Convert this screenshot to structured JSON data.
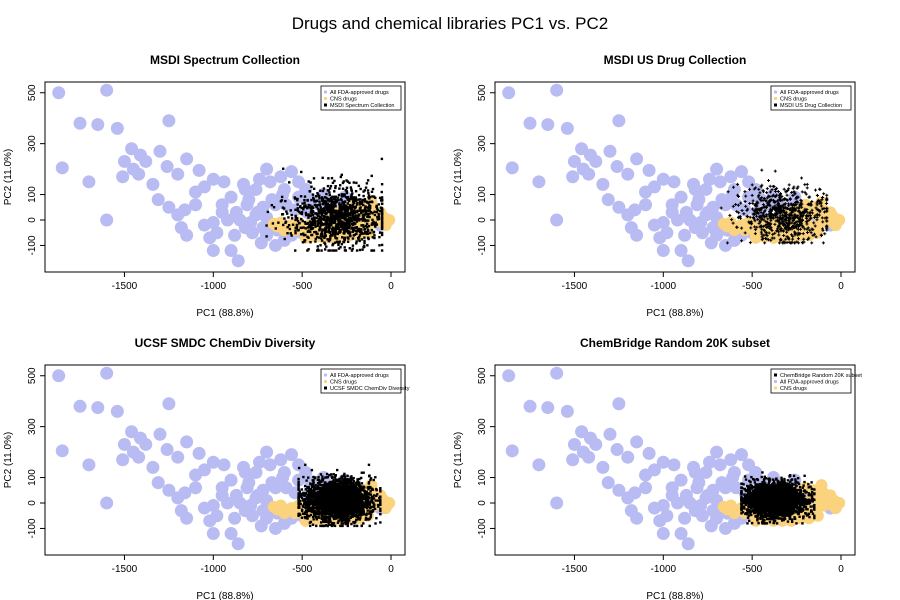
{
  "figure": {
    "title": "Drugs and chemical libraries PC1 vs. PC2"
  },
  "colors": {
    "fda": "#b9bcf2",
    "cns": "#fbd27d",
    "library": "#000000",
    "axis": "#000000"
  },
  "chart_data": [
    {
      "type": "scatter",
      "title": "MSDI Spectrum Collection",
      "xlabel": "PC1 (88.8%)",
      "ylabel": "PC2 (11.0%)",
      "xlim": [
        -1900,
        50
      ],
      "ylim": [
        -190,
        540
      ],
      "xticks": [
        -1500,
        -1000,
        -500,
        0
      ],
      "yticks": [
        -100,
        0,
        100,
        300,
        500
      ],
      "legend_position": "top-right",
      "legend": [
        {
          "label": "All FDA-approved drugs",
          "series": "fda"
        },
        {
          "label": "CNS drugs",
          "series": "cns"
        },
        {
          "label": "MSDI Spectrum Collection",
          "series": "library"
        }
      ],
      "library_cloud": {
        "x_range": [
          -700,
          -50
        ],
        "y_range": [
          -120,
          240
        ],
        "center": [
          -300,
          10
        ],
        "marker": "square"
      }
    },
    {
      "type": "scatter",
      "title": "MSDI US Drug Collection",
      "xlabel": "PC1 (88.8%)",
      "ylabel": "PC2 (11.0%)",
      "xlim": [
        -1900,
        50
      ],
      "ylim": [
        -190,
        540
      ],
      "xticks": [
        -1500,
        -1000,
        -500,
        0
      ],
      "yticks": [
        -100,
        0,
        100,
        300,
        500
      ],
      "legend_position": "top-right",
      "legend": [
        {
          "label": "All FDA-approved drugs",
          "series": "fda"
        },
        {
          "label": "CNS drugs",
          "series": "cns"
        },
        {
          "label": "MSDI US Drug Collection",
          "series": "library"
        }
      ],
      "library_cloud": {
        "x_range": [
          -700,
          -80
        ],
        "y_range": [
          -90,
          230
        ],
        "center": [
          -320,
          20
        ],
        "marker": "plus"
      }
    },
    {
      "type": "scatter",
      "title": "UCSF SMDC ChemDiv Diversity",
      "xlabel": "PC1 (88.8%)",
      "ylabel": "PC2 (11.0%)",
      "xlim": [
        -1900,
        50
      ],
      "ylim": [
        -190,
        540
      ],
      "xticks": [
        -1500,
        -1000,
        -500,
        0
      ],
      "yticks": [
        -100,
        0,
        100,
        300,
        500
      ],
      "legend_position": "top-right",
      "legend": [
        {
          "label": "All FDA-approved drugs",
          "series": "fda"
        },
        {
          "label": "CNS drugs",
          "series": "cns"
        },
        {
          "label": "UCSF SMDC ChemDiv Diversity",
          "series": "library"
        }
      ],
      "library_cloud": {
        "x_range": [
          -520,
          -60
        ],
        "y_range": [
          -90,
          150
        ],
        "center": [
          -300,
          10
        ],
        "marker": "square"
      }
    },
    {
      "type": "scatter",
      "title": "ChemBridge Random 20K subset",
      "xlabel": "PC1 (88.8%)",
      "ylabel": "PC2 (11.0%)",
      "xlim": [
        -1900,
        50
      ],
      "ylim": [
        -190,
        540
      ],
      "xticks": [
        -1500,
        -1000,
        -500,
        0
      ],
      "yticks": [
        -100,
        0,
        100,
        300,
        500
      ],
      "legend_position": "top-right",
      "legend": [
        {
          "label": "ChemBridge Random 20K subset",
          "series": "library"
        },
        {
          "label": "All FDA-approved drugs",
          "series": "fda"
        },
        {
          "label": "CNS drugs",
          "series": "cns"
        }
      ],
      "library_cloud": {
        "x_range": [
          -560,
          -150
        ],
        "y_range": [
          -80,
          120
        ],
        "center": [
          -370,
          10
        ],
        "marker": "square"
      }
    }
  ],
  "shared_series": {
    "fda_points": [
      [
        -1870,
        500
      ],
      [
        -1600,
        510
      ],
      [
        -1750,
        380
      ],
      [
        -1650,
        375
      ],
      [
        -1540,
        360
      ],
      [
        -1250,
        390
      ],
      [
        -1460,
        280
      ],
      [
        -1410,
        255
      ],
      [
        -1380,
        230
      ],
      [
        -1300,
        270
      ],
      [
        -1260,
        210
      ],
      [
        -1150,
        240
      ],
      [
        -1080,
        195
      ],
      [
        -1000,
        160
      ],
      [
        -940,
        150
      ],
      [
        -1850,
        205
      ],
      [
        -1700,
        150
      ],
      [
        -1500,
        230
      ],
      [
        -1450,
        200
      ],
      [
        -1420,
        180
      ],
      [
        -1510,
        170
      ],
      [
        -1340,
        140
      ],
      [
        -1200,
        180
      ],
      [
        -1100,
        110
      ],
      [
        -1050,
        130
      ],
      [
        -1310,
        80
      ],
      [
        -1250,
        50
      ],
      [
        -1160,
        40
      ],
      [
        -1600,
        0
      ],
      [
        -1180,
        -30
      ],
      [
        -1150,
        -60
      ],
      [
        -1050,
        -20
      ],
      [
        -1000,
        -10
      ],
      [
        -980,
        -50
      ],
      [
        -1020,
        -70
      ],
      [
        -1000,
        -120
      ],
      [
        -900,
        -120
      ],
      [
        -880,
        -60
      ],
      [
        -950,
        30
      ],
      [
        -920,
        0
      ],
      [
        -850,
        0
      ],
      [
        -800,
        80
      ],
      [
        -820,
        -30
      ],
      [
        -780,
        -50
      ],
      [
        -860,
        -160
      ],
      [
        -750,
        30
      ],
      [
        -720,
        50
      ],
      [
        -700,
        10
      ],
      [
        -680,
        -20
      ],
      [
        -650,
        60
      ],
      [
        -640,
        -40
      ],
      [
        -610,
        100
      ],
      [
        -600,
        120
      ],
      [
        -740,
        160
      ],
      [
        -700,
        200
      ],
      [
        -760,
        120
      ],
      [
        -680,
        150
      ],
      [
        -820,
        120
      ],
      [
        -900,
        90
      ],
      [
        -950,
        60
      ],
      [
        -1100,
        60
      ],
      [
        -1200,
        20
      ],
      [
        -870,
        30
      ],
      [
        -830,
        140
      ],
      [
        -620,
        170
      ],
      [
        -560,
        190
      ],
      [
        -520,
        150
      ],
      [
        -480,
        120
      ],
      [
        -450,
        80
      ],
      [
        -600,
        -80
      ],
      [
        -560,
        -60
      ],
      [
        -500,
        -50
      ],
      [
        -650,
        -100
      ],
      [
        -700,
        -60
      ],
      [
        -730,
        -90
      ],
      [
        -590,
        60
      ],
      [
        -540,
        40
      ],
      [
        -520,
        90
      ],
      [
        -470,
        30
      ],
      [
        -440,
        10
      ],
      [
        -400,
        60
      ],
      [
        -380,
        100
      ],
      [
        -350,
        70
      ],
      [
        -330,
        40
      ],
      [
        -300,
        20
      ],
      [
        -280,
        60
      ],
      [
        -260,
        90
      ],
      [
        -240,
        40
      ],
      [
        -220,
        10
      ],
      [
        -200,
        30
      ],
      [
        -180,
        0
      ],
      [
        -160,
        20
      ],
      [
        -140,
        -10
      ],
      [
        -120,
        40
      ],
      [
        -100,
        0
      ],
      [
        -80,
        10
      ],
      [
        -60,
        -20
      ],
      [
        -400,
        -60
      ],
      [
        -360,
        -40
      ],
      [
        -320,
        -60
      ],
      [
        -760,
        20
      ],
      [
        -790,
        -10
      ],
      [
        -810,
        60
      ],
      [
        -720,
        -30
      ],
      [
        -670,
        80
      ]
    ],
    "cns_points": [
      [
        -10,
        0
      ],
      [
        -40,
        10
      ],
      [
        -60,
        -5
      ],
      [
        -80,
        20
      ],
      [
        -100,
        -10
      ],
      [
        -120,
        10
      ],
      [
        -140,
        -30
      ],
      [
        -160,
        30
      ],
      [
        -180,
        -20
      ],
      [
        -200,
        0
      ],
      [
        -220,
        -40
      ],
      [
        -240,
        20
      ],
      [
        -260,
        -30
      ],
      [
        -280,
        10
      ],
      [
        -300,
        -50
      ],
      [
        -320,
        -20
      ],
      [
        -340,
        -40
      ],
      [
        -360,
        0
      ],
      [
        -380,
        -50
      ],
      [
        -400,
        -30
      ],
      [
        -420,
        -10
      ],
      [
        -440,
        -40
      ],
      [
        -460,
        -20
      ],
      [
        -480,
        -50
      ],
      [
        -500,
        -30
      ],
      [
        -520,
        -10
      ],
      [
        -540,
        -40
      ],
      [
        -560,
        -20
      ],
      [
        -580,
        -30
      ],
      [
        -600,
        -40
      ],
      [
        -620,
        -10
      ],
      [
        -640,
        -25
      ],
      [
        -660,
        -15
      ],
      [
        -100,
        40
      ],
      [
        -150,
        50
      ],
      [
        -200,
        60
      ],
      [
        -250,
        40
      ],
      [
        -300,
        30
      ],
      [
        -130,
        -50
      ],
      [
        -180,
        -60
      ],
      [
        -230,
        -60
      ],
      [
        -280,
        -70
      ],
      [
        -330,
        -70
      ],
      [
        -380,
        -70
      ],
      [
        -430,
        -65
      ],
      [
        -480,
        -70
      ],
      [
        -60,
        30
      ],
      [
        -30,
        -20
      ],
      [
        -110,
        70
      ],
      [
        -170,
        -40
      ]
    ]
  }
}
